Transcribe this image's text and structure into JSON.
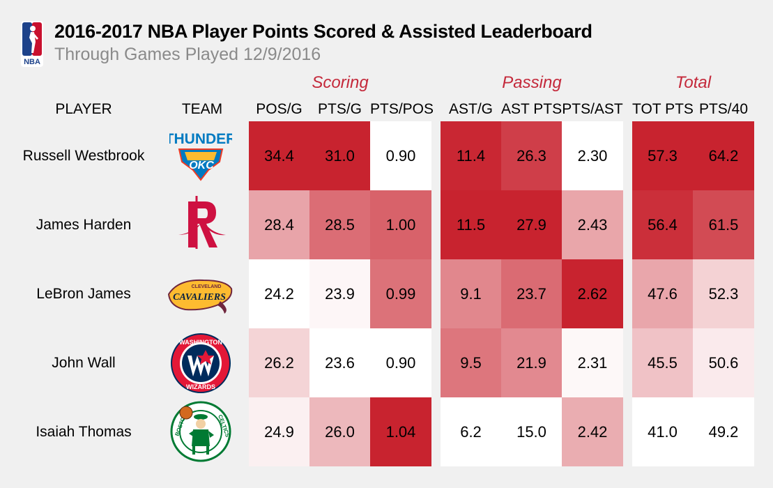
{
  "header": {
    "title": "2016-2017 NBA Player Points Scored & Assisted Leaderboard",
    "subtitle": "Through Games Played 12/9/2016"
  },
  "colors": {
    "accent": "#c4283a",
    "cell_max": "#c8232f",
    "cell_min": "#ffffff",
    "background": "#f0f0f0"
  },
  "chart_data": {
    "type": "table",
    "column_groups": [
      {
        "label": "Scoring",
        "columns": [
          "POS/G",
          "PTS/G",
          "PTS/POS"
        ]
      },
      {
        "label": "Passing",
        "columns": [
          "AST/G",
          "AST PTS",
          "PTS/AST"
        ]
      },
      {
        "label": "Total",
        "columns": [
          "TOT PTS",
          "PTS/40"
        ]
      }
    ],
    "row_headers": [
      "PLAYER",
      "TEAM"
    ],
    "columns": [
      "POS/G",
      "PTS/G",
      "PTS/POS",
      "AST/G",
      "AST PTS",
      "PTS/AST",
      "TOT PTS",
      "PTS/40"
    ],
    "rows": [
      {
        "player": "Russell Westbrook",
        "team_icon": "thunder-logo-icon",
        "values": [
          "34.4",
          "31.0",
          "0.90",
          "11.4",
          "26.3",
          "2.30",
          "57.3",
          "64.2"
        ]
      },
      {
        "player": "James Harden",
        "team_icon": "rockets-logo-icon",
        "values": [
          "28.4",
          "28.5",
          "1.00",
          "11.5",
          "27.9",
          "2.43",
          "56.4",
          "61.5"
        ]
      },
      {
        "player": "LeBron James",
        "team_icon": "cavaliers-logo-icon",
        "values": [
          "24.2",
          "23.9",
          "0.99",
          "9.1",
          "23.7",
          "2.62",
          "47.6",
          "52.3"
        ]
      },
      {
        "player": "John Wall",
        "team_icon": "wizards-logo-icon",
        "values": [
          "26.2",
          "23.6",
          "0.90",
          "9.5",
          "21.9",
          "2.31",
          "45.5",
          "50.6"
        ]
      },
      {
        "player": "Isaiah Thomas",
        "team_icon": "celtics-logo-icon",
        "values": [
          "24.9",
          "26.0",
          "1.04",
          "6.2",
          "15.0",
          "2.42",
          "41.0",
          "49.2"
        ]
      }
    ],
    "team_logo_text": {
      "thunder": [
        "THUNDER",
        "OKC"
      ],
      "cavaliers": [
        "CLEVELAND",
        "CAVALIERS"
      ],
      "wizards": [
        "WASHINGTON",
        "WIZARDS"
      ],
      "celtics": [
        "BOSTON",
        "CELTICS"
      ]
    },
    "logo_text": "NBA"
  }
}
